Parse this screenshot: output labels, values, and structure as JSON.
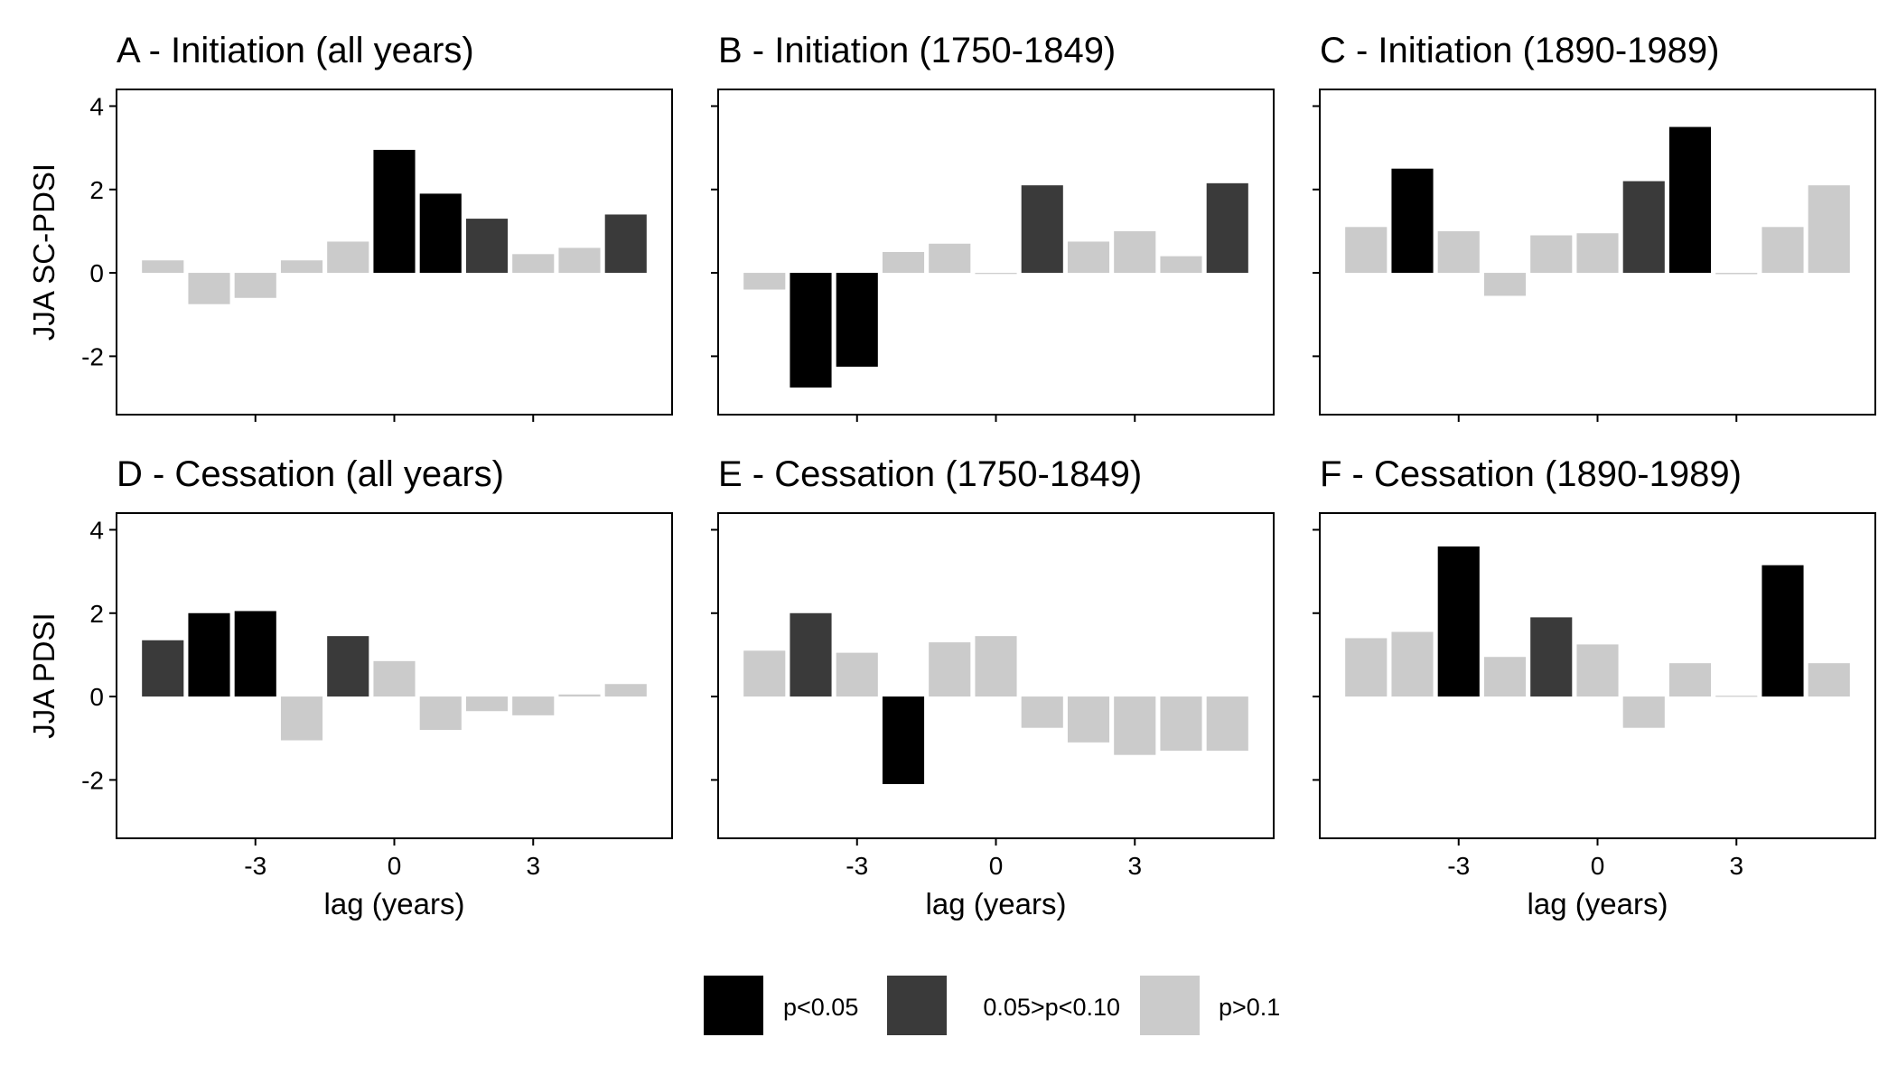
{
  "figure": {
    "row_ylabels": [
      "JJA SC-PDSI",
      "JJA PDSI"
    ],
    "xlabel": "lag (years)"
  },
  "legend": {
    "items": [
      {
        "label": "p<0.05",
        "color": "#000000"
      },
      {
        "label": "0.05>p<0.10",
        "color": "#3a3a3a"
      },
      {
        "label": "p>0.1",
        "color": "#cbcbcb"
      }
    ]
  },
  "chart_data": [
    {
      "type": "bar",
      "title": "A - Initiation (all years)",
      "ylabel": "JJA SC-PDSI",
      "xlabel": "",
      "x": [
        -5,
        -4,
        -3,
        -2,
        -1,
        0,
        1,
        2,
        3,
        4,
        5
      ],
      "values": [
        0.3,
        -0.75,
        -0.6,
        0.3,
        0.75,
        2.95,
        1.9,
        1.3,
        0.45,
        0.6,
        1.4
      ],
      "significance": [
        "p>0.1",
        "p>0.1",
        "p>0.1",
        "p>0.1",
        "p>0.1",
        "p<0.05",
        "p<0.05",
        "0.05>p<0.10",
        "p>0.1",
        "p>0.1",
        "0.05>p<0.10"
      ],
      "xticks": [
        -3,
        0,
        3
      ],
      "yticks": [
        -2,
        0,
        2,
        4
      ],
      "ylim": [
        -3.4,
        4.4
      ],
      "xlim": [
        -6,
        6
      ]
    },
    {
      "type": "bar",
      "title": "B - Initiation (1750-1849)",
      "ylabel": "",
      "xlabel": "",
      "x": [
        -5,
        -4,
        -3,
        -2,
        -1,
        0,
        1,
        2,
        3,
        4,
        5
      ],
      "values": [
        -0.4,
        -2.75,
        -2.25,
        0.5,
        0.7,
        0,
        2.1,
        0.75,
        1.0,
        0.4,
        2.15
      ],
      "significance": [
        "p>0.1",
        "p<0.05",
        "p<0.05",
        "p>0.1",
        "p>0.1",
        "p>0.1",
        "0.05>p<0.10",
        "p>0.1",
        "p>0.1",
        "p>0.1",
        "0.05>p<0.10"
      ],
      "xticks": [
        -3,
        0,
        3
      ],
      "yticks": [
        -2,
        0,
        2,
        4
      ],
      "ylim": [
        -3.4,
        4.4
      ],
      "xlim": [
        -6,
        6
      ]
    },
    {
      "type": "bar",
      "title": "C - Initiation (1890-1989)",
      "ylabel": "",
      "xlabel": "",
      "x": [
        -5,
        -4,
        -3,
        -2,
        -1,
        0,
        1,
        2,
        3,
        4,
        5
      ],
      "values": [
        1.1,
        2.5,
        1.0,
        -0.55,
        0.9,
        0.95,
        2.2,
        3.5,
        -0.03,
        1.1,
        2.1
      ],
      "significance": [
        "p>0.1",
        "p<0.05",
        "p>0.1",
        "p>0.1",
        "p>0.1",
        "p>0.1",
        "0.05>p<0.10",
        "p<0.05",
        "p>0.1",
        "p>0.1",
        "p>0.1"
      ],
      "xticks": [
        -3,
        0,
        3
      ],
      "yticks": [
        -2,
        0,
        2,
        4
      ],
      "ylim": [
        -3.4,
        4.4
      ],
      "xlim": [
        -6,
        6
      ]
    },
    {
      "type": "bar",
      "title": "D - Cessation (all years)",
      "ylabel": "JJA PDSI",
      "xlabel": "lag (years)",
      "x": [
        -5,
        -4,
        -3,
        -2,
        -1,
        0,
        1,
        2,
        3,
        4,
        5
      ],
      "values": [
        1.35,
        2.0,
        2.05,
        -1.05,
        1.45,
        0.85,
        -0.8,
        -0.35,
        -0.45,
        0.05,
        0.3
      ],
      "significance": [
        "0.05>p<0.10",
        "p<0.05",
        "p<0.05",
        "p>0.1",
        "0.05>p<0.10",
        "p>0.1",
        "p>0.1",
        "p>0.1",
        "p>0.1",
        "p>0.1",
        "p>0.1"
      ],
      "xticks": [
        -3,
        0,
        3
      ],
      "yticks": [
        -2,
        0,
        2,
        4
      ],
      "ylim": [
        -3.4,
        4.4
      ],
      "xlim": [
        -6,
        6
      ]
    },
    {
      "type": "bar",
      "title": "E - Cessation (1750-1849)",
      "ylabel": "",
      "xlabel": "lag (years)",
      "x": [
        -5,
        -4,
        -3,
        -2,
        -1,
        0,
        1,
        2,
        3,
        4,
        5
      ],
      "values": [
        1.1,
        2.0,
        1.05,
        -2.1,
        1.3,
        1.45,
        -0.75,
        -1.1,
        -1.4,
        -1.3,
        -1.3
      ],
      "significance": [
        "p>0.1",
        "0.05>p<0.10",
        "p>0.1",
        "p<0.05",
        "p>0.1",
        "p>0.1",
        "p>0.1",
        "p>0.1",
        "p>0.1",
        "p>0.1",
        "p>0.1"
      ],
      "xticks": [
        -3,
        0,
        3
      ],
      "yticks": [
        -2,
        0,
        2,
        4
      ],
      "ylim": [
        -3.4,
        4.4
      ],
      "xlim": [
        -6,
        6
      ]
    },
    {
      "type": "bar",
      "title": "F - Cessation (1890-1989)",
      "ylabel": "",
      "xlabel": "lag (years)",
      "x": [
        -5,
        -4,
        -3,
        -2,
        -1,
        0,
        1,
        2,
        3,
        4,
        5
      ],
      "values": [
        1.4,
        1.55,
        3.6,
        0.95,
        1.9,
        1.25,
        -0.75,
        0.8,
        0.02,
        3.15,
        0.8
      ],
      "significance": [
        "p>0.1",
        "p>0.1",
        "p<0.05",
        "p>0.1",
        "0.05>p<0.10",
        "p>0.1",
        "p>0.1",
        "p>0.1",
        "p>0.1",
        "p<0.05",
        "p>0.1"
      ],
      "xticks": [
        -3,
        0,
        3
      ],
      "yticks": [
        -2,
        0,
        2,
        4
      ],
      "ylim": [
        -3.4,
        4.4
      ],
      "xlim": [
        -6,
        6
      ]
    }
  ]
}
